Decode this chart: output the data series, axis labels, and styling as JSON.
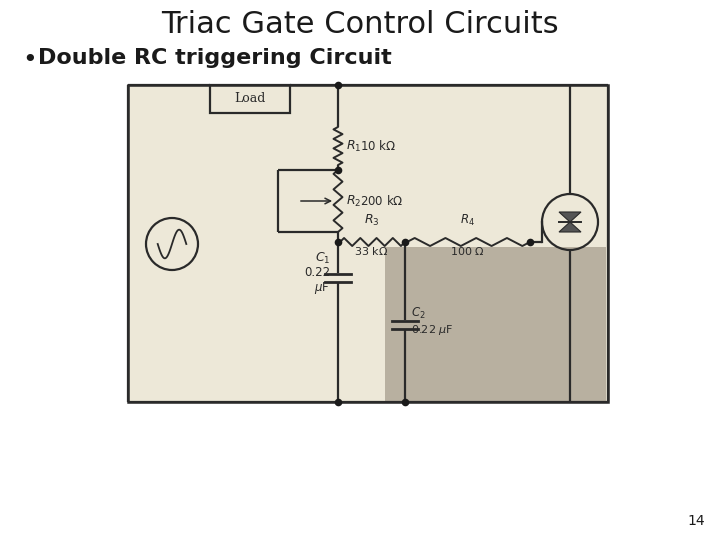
{
  "title": "Triac Gate Control Circuits",
  "bullet": "Double RC triggering Circuit",
  "slide_number": "14",
  "bg_color": "#ffffff",
  "title_fontsize": 22,
  "bullet_fontsize": 16,
  "circuit_bg": "#ede8d8",
  "circuit_highlight_bg": "#b8b0a0",
  "text_color": "#1a1a1a",
  "line_color": "#2a2a2a",
  "component_color": "#2a2a2a"
}
